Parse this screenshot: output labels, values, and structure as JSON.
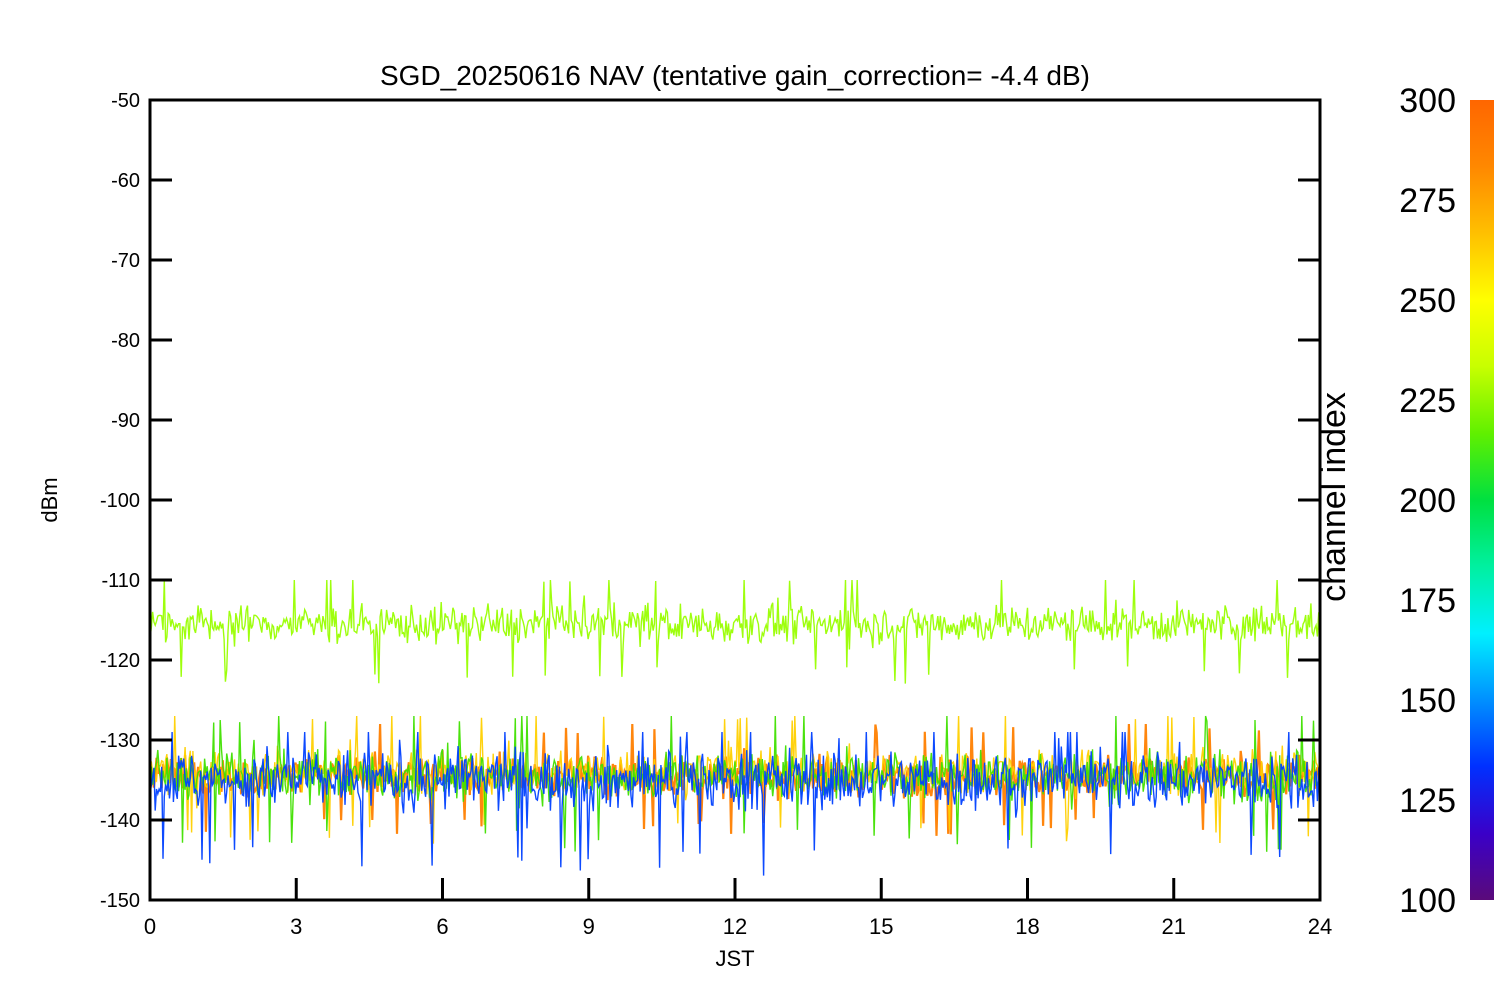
{
  "chart_data": {
    "type": "line",
    "title": "SGD_20250616 NAV (tentative gain_correction= -4.4 dB)",
    "xlabel": "JST",
    "ylabel": "dBm",
    "xlim": [
      0,
      24
    ],
    "ylim": [
      -150,
      -50
    ],
    "xticks": [
      0,
      3,
      6,
      9,
      12,
      15,
      18,
      21,
      24
    ],
    "yticks": [
      -50,
      -60,
      -70,
      -80,
      -90,
      -100,
      -110,
      -120,
      -130,
      -140,
      -150
    ],
    "grid": false,
    "series": [
      {
        "color_index": 300,
        "mean": -134.5,
        "spread_low": -142,
        "spread_high": -128,
        "color": "#ff8000"
      },
      {
        "color_index": 270,
        "mean": -134,
        "spread_low": -143,
        "spread_high": -127,
        "color": "#ffd000"
      },
      {
        "color_index": 250,
        "mean": -134.5,
        "spread_low": -144,
        "spread_high": -127,
        "color": "#40e000"
      },
      {
        "color_index": 150,
        "mean": -135,
        "spread_low": -147,
        "spread_high": -129,
        "color": "#0040ff"
      },
      {
        "color_index": 258,
        "mean": -115.5,
        "spread_low": -123,
        "spread_high": -110,
        "color": "#99ff00"
      }
    ],
    "colorbar": {
      "label": "channel index",
      "ticks": [
        300,
        275,
        250,
        225,
        200,
        175,
        150,
        125,
        100
      ],
      "range": [
        100,
        300
      ],
      "colors": [
        "#5a0a7a",
        "#3a00c8",
        "#0030ff",
        "#0090ff",
        "#00f0ff",
        "#00f0a0",
        "#00e040",
        "#60f000",
        "#c8ff00",
        "#ffff00",
        "#ffc000",
        "#ff8800",
        "#ff6600"
      ]
    }
  }
}
